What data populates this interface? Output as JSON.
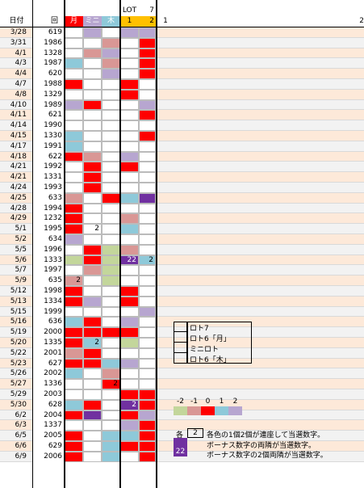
{
  "header": {
    "date": "日付",
    "round": "回",
    "col1": "月",
    "col2": "ミニ",
    "col3": "木",
    "lot": "LOT",
    "lot_num": "1",
    "seven": "7",
    "seven_num": "2",
    "ruler_start": "1",
    "ruler_end": "2"
  },
  "palette": {
    "R": "#ff0000",
    "P": "#b7a6d0",
    "p": "#d99795",
    "B": "#8ec9d9",
    "G": "#c3d69b",
    "V": "#7030a0",
    "W": "#ffffff"
  },
  "rows": [
    {
      "date": "3/28",
      "no": "619",
      "c": [
        "W",
        "P",
        "W",
        "P",
        "P"
      ]
    },
    {
      "date": "3/31",
      "no": "1986",
      "c": [
        "W",
        "W",
        "p",
        "W",
        "R"
      ]
    },
    {
      "date": "4/1",
      "no": "1328",
      "c": [
        "W",
        "p",
        "P",
        "W",
        "R"
      ]
    },
    {
      "date": "4/3",
      "no": "1987",
      "c": [
        "B",
        "W",
        "p",
        "W",
        "R"
      ]
    },
    {
      "date": "4/4",
      "no": "620",
      "c": [
        "W",
        "W",
        "P",
        "W",
        "R"
      ]
    },
    {
      "date": "4/7",
      "no": "1988",
      "c": [
        "R",
        "W",
        "W",
        "R",
        "W"
      ]
    },
    {
      "date": "4/8",
      "no": "1329",
      "c": [
        "W",
        "W",
        "W",
        "R",
        "W"
      ]
    },
    {
      "date": "4/10",
      "no": "1989",
      "c": [
        "P",
        "R",
        "W",
        "W",
        "P"
      ]
    },
    {
      "date": "4/11",
      "no": "621",
      "c": [
        "W",
        "W",
        "W",
        "W",
        "R"
      ]
    },
    {
      "date": "4/14",
      "no": "1990",
      "c": [
        "W",
        "W",
        "W",
        "W",
        "W"
      ]
    },
    {
      "date": "4/15",
      "no": "1330",
      "c": [
        "B",
        "W",
        "W",
        "W",
        "R"
      ]
    },
    {
      "date": "4/17",
      "no": "1991",
      "c": [
        "B",
        "W",
        "W",
        "W",
        "W"
      ]
    },
    {
      "date": "4/18",
      "no": "622",
      "c": [
        "R",
        "p",
        "W",
        "P",
        "W"
      ]
    },
    {
      "date": "4/21",
      "no": "1992",
      "c": [
        "W",
        "R",
        "W",
        "R",
        "W"
      ]
    },
    {
      "date": "4/21",
      "no": "1331",
      "c": [
        "W",
        "R",
        "W",
        "W",
        "W"
      ]
    },
    {
      "date": "4/24",
      "no": "1993",
      "c": [
        "W",
        "R",
        "W",
        "W",
        "W"
      ]
    },
    {
      "date": "4/25",
      "no": "633",
      "c": [
        "p",
        "W",
        "R",
        "B",
        "V"
      ]
    },
    {
      "date": "4/28",
      "no": "1994",
      "c": [
        "R",
        "W",
        "W",
        "W",
        "W"
      ]
    },
    {
      "date": "4/29",
      "no": "1232",
      "c": [
        "R",
        "W",
        "W",
        "p",
        "W"
      ]
    },
    {
      "date": "5/1",
      "no": "1995",
      "c": [
        "R",
        "W",
        "W",
        "B",
        "W"
      ]
    },
    {
      "date": "5/2",
      "no": "634",
      "c": [
        "P",
        "W",
        "W",
        "W",
        "W"
      ]
    },
    {
      "date": "5/5",
      "no": "1996",
      "c": [
        "W",
        "R",
        "G",
        "p",
        "W"
      ]
    },
    {
      "date": "5/6",
      "no": "1333",
      "c": [
        "G",
        "R",
        "G",
        "V",
        "B"
      ]
    },
    {
      "date": "5/7",
      "no": "1997",
      "c": [
        "W",
        "p",
        "G",
        "W",
        "W"
      ]
    },
    {
      "date": "5/9",
      "no": "635",
      "c": [
        "p",
        "W",
        "G",
        "W",
        "W"
      ]
    },
    {
      "date": "5/12",
      "no": "1998",
      "c": [
        "R",
        "W",
        "W",
        "R",
        "W"
      ]
    },
    {
      "date": "5/13",
      "no": "1334",
      "c": [
        "R",
        "P",
        "W",
        "R",
        "W"
      ]
    },
    {
      "date": "5/15",
      "no": "1999",
      "c": [
        "W",
        "W",
        "W",
        "W",
        "P"
      ]
    },
    {
      "date": "5/16",
      "no": "636",
      "c": [
        "B",
        "R",
        "W",
        "P",
        "W"
      ]
    },
    {
      "date": "5/19",
      "no": "2000",
      "c": [
        "R",
        "R",
        "R",
        "R",
        "W"
      ]
    },
    {
      "date": "5/20",
      "no": "1335",
      "c": [
        "R",
        "B",
        "W",
        "G",
        "W"
      ]
    },
    {
      "date": "5/22",
      "no": "2001",
      "c": [
        "p",
        "R",
        "W",
        "W",
        "W"
      ]
    },
    {
      "date": "5/23",
      "no": "627",
      "c": [
        "R",
        "R",
        "B",
        "P",
        "W"
      ]
    },
    {
      "date": "5/26",
      "no": "2002",
      "c": [
        "B",
        "W",
        "p",
        "W",
        "W"
      ]
    },
    {
      "date": "5/27",
      "no": "1336",
      "c": [
        "W",
        "W",
        "R",
        "W",
        "W"
      ]
    },
    {
      "date": "5/29",
      "no": "2003",
      "c": [
        "W",
        "W",
        "W",
        "R",
        "R"
      ]
    },
    {
      "date": "5/30",
      "no": "628",
      "c": [
        "B",
        "R",
        "W",
        "V",
        "R"
      ]
    },
    {
      "date": "6/2",
      "no": "2004",
      "c": [
        "R",
        "V",
        "W",
        "R",
        "P"
      ]
    },
    {
      "date": "6/3",
      "no": "1337",
      "c": [
        "W",
        "W",
        "W",
        "P",
        "R"
      ]
    },
    {
      "date": "6/5",
      "no": "2005",
      "c": [
        "R",
        "W",
        "B",
        "B",
        "R"
      ]
    },
    {
      "date": "6/6",
      "no": "629",
      "c": [
        "R",
        "W",
        "B",
        "R",
        "R"
      ]
    },
    {
      "date": "6/9",
      "no": "2006",
      "c": [
        "R",
        "W",
        "B",
        "W",
        "R"
      ]
    }
  ],
  "cell_numbers": [
    {
      "r": 19,
      "c": 1,
      "t": "2"
    },
    {
      "r": 22,
      "c": 3,
      "t": "22"
    },
    {
      "r": 22,
      "c": 4,
      "t": "2"
    },
    {
      "r": 24,
      "c": 0,
      "t": "2"
    },
    {
      "r": 30,
      "c": 1,
      "t": "2"
    },
    {
      "r": 34,
      "c": 2,
      "t": "2"
    },
    {
      "r": 36,
      "c": 3,
      "t": "2"
    }
  ],
  "legend": {
    "items": [
      "ロト7",
      "ロト6「月」",
      "ミニロト",
      "ロト6「木」"
    ],
    "scale_labels": [
      "-2",
      "-1",
      "0",
      "1",
      "2"
    ],
    "scale_colors": [
      "G",
      "p",
      "R",
      "B",
      "P"
    ],
    "note_prefix": "各",
    "note_box": "2",
    "note1": "各色の1個2個が連座して当選数字。",
    "note2": "ボーナス数字の両隣が当選数字。",
    "note3_box": "22",
    "note3": "ボーナス数字の2個両隣が当選数字。"
  }
}
